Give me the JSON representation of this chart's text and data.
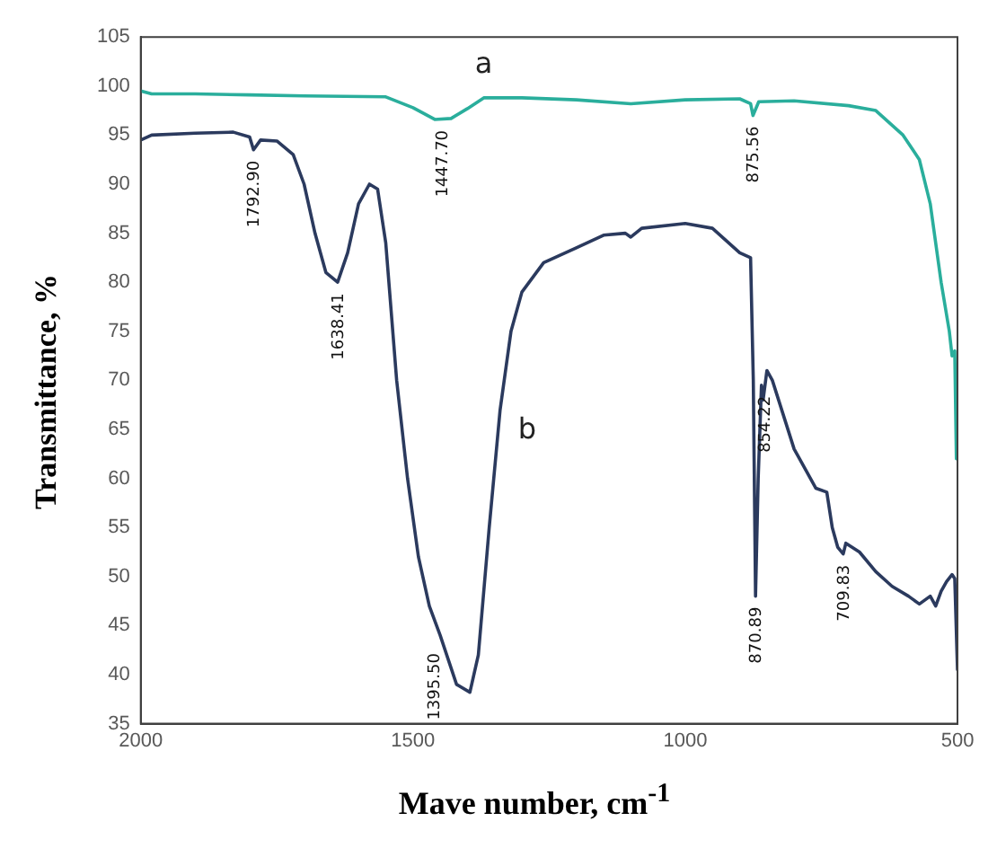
{
  "chart_data": {
    "type": "line",
    "xlabel": "Mave number, cm$^{-1}$",
    "ylabel": "Transmittance, %",
    "xlim": [
      2000,
      500
    ],
    "xticks": [
      2000,
      1500,
      1000,
      500
    ],
    "ylim": [
      35,
      105
    ],
    "yticks": [
      35,
      40,
      45,
      50,
      55,
      60,
      65,
      70,
      75,
      80,
      85,
      90,
      95,
      100,
      105
    ],
    "grid": false,
    "legend": false,
    "marker": "none",
    "series": [
      {
        "name": "a",
        "color": "#2aae9c",
        "x": [
          2000,
          1980,
          1900,
          1800,
          1700,
          1550,
          1500,
          1460,
          1430,
          1400,
          1370,
          1300,
          1200,
          1100,
          1000,
          900,
          880,
          875.56,
          865,
          800,
          700,
          650,
          600,
          570,
          550,
          530,
          515,
          510,
          505,
          502,
          500
        ],
        "values": [
          99.5,
          99.2,
          99.2,
          99.1,
          99.0,
          98.9,
          97.8,
          96.6,
          96.7,
          97.7,
          98.8,
          98.8,
          98.6,
          98.2,
          98.6,
          98.7,
          98.2,
          97.0,
          98.4,
          98.5,
          98.0,
          97.5,
          95.0,
          92.5,
          88,
          80,
          75,
          72.5,
          73,
          62,
          68
        ]
      },
      {
        "name": "b",
        "color": "#2b3a5e",
        "x": [
          2000,
          1980,
          1900,
          1830,
          1800,
          1792.9,
          1780,
          1750,
          1720,
          1700,
          1680,
          1660,
          1638.41,
          1620,
          1600,
          1580,
          1565,
          1550,
          1530,
          1510,
          1490,
          1470,
          1450,
          1420,
          1395.5,
          1380,
          1360,
          1340,
          1320,
          1300,
          1260,
          1200,
          1150,
          1110,
          1100,
          1080,
          1000,
          950,
          900,
          880,
          875,
          870.89,
          866,
          860,
          857,
          850,
          840,
          800,
          760,
          740,
          730,
          720,
          709.83,
          705,
          680,
          650,
          620,
          590,
          570,
          550,
          540,
          530,
          520,
          510,
          505,
          500
        ],
        "values": [
          94.5,
          95,
          95.2,
          95.3,
          94.8,
          93.5,
          94.5,
          94.4,
          93,
          90,
          85,
          81,
          80,
          83,
          88,
          90,
          89.5,
          84,
          70,
          60,
          52,
          47,
          44,
          39,
          38.2,
          42,
          55,
          67,
          75,
          79,
          82,
          83.5,
          84.8,
          85,
          84.6,
          85.5,
          86,
          85.5,
          83,
          82.5,
          70,
          48,
          60,
          69.5,
          68,
          71,
          70,
          63,
          59,
          58.6,
          55,
          53,
          52.3,
          53.4,
          52.5,
          50.5,
          49,
          48,
          47.2,
          48,
          47,
          48.5,
          49.5,
          50.2,
          49.8,
          40.5
        ]
      }
    ],
    "annotations": [
      {
        "text": "1792.90",
        "x": 1792.9,
        "y": 93.5
      },
      {
        "text": "1638.41",
        "x": 1638.41,
        "y": 80
      },
      {
        "text": "1447.70",
        "x": 1447.7,
        "y": 96.6
      },
      {
        "text": "875.56",
        "x": 875.56,
        "y": 97.0
      },
      {
        "text": "1395.50",
        "x": 1395.5,
        "y": 38.2
      },
      {
        "text": "870.89",
        "x": 870.89,
        "y": 48
      },
      {
        "text": "854.22",
        "x": 854.22,
        "y": 69.5
      },
      {
        "text": "709.83",
        "x": 709.83,
        "y": 52.3
      }
    ]
  }
}
